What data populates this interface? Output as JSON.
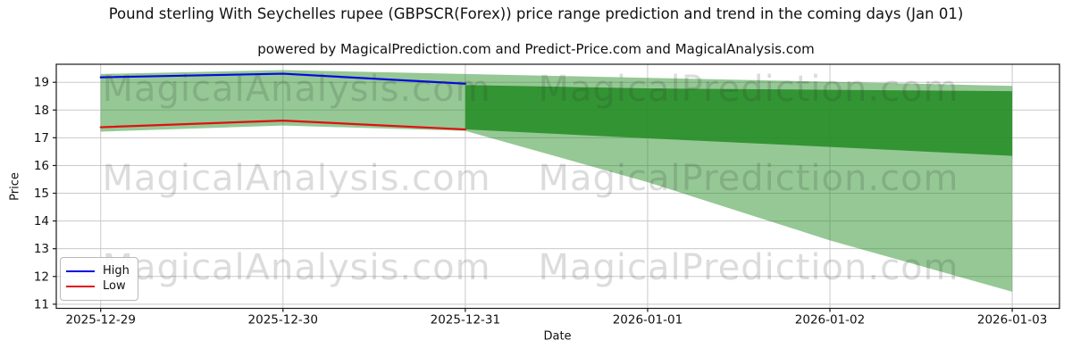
{
  "chart_data": {
    "type": "line",
    "title": "Pound sterling With Seychelles rupee (GBPSCR(Forex)) price range prediction and trend in the coming days (Jan 01)",
    "subtitle": "powered by MagicalPrediction.com and Predict-Price.com and MagicalAnalysis.com",
    "xlabel": "Date",
    "ylabel": "Price",
    "categories": [
      "2025-12-29",
      "2025-12-30",
      "2025-12-31",
      "2026-01-01",
      "2026-01-02",
      "2026-01-03"
    ],
    "y_ticks": [
      11,
      12,
      13,
      14,
      15,
      16,
      17,
      18,
      19
    ],
    "ylim": [
      10.85,
      19.65
    ],
    "grid": true,
    "legend_position": "lower left",
    "series": [
      {
        "name": "High",
        "color": "#0808e0",
        "x_idx": [
          0,
          1,
          2
        ],
        "values": [
          19.18,
          19.31,
          18.95
        ]
      },
      {
        "name": "Low",
        "color": "#e01010",
        "x_idx": [
          0,
          1,
          2
        ],
        "values": [
          17.38,
          17.62,
          17.3
        ]
      }
    ],
    "bands": [
      {
        "name": "range-band-light",
        "color": "rgba(34,139,34,0.48)",
        "x_idx": [
          0,
          1,
          2,
          3,
          4,
          5
        ],
        "upper": [
          19.3,
          19.44,
          19.3,
          19.16,
          19.02,
          18.87
        ],
        "lower": [
          17.22,
          17.44,
          17.25,
          15.4,
          13.3,
          11.45
        ]
      },
      {
        "name": "prediction-band-dark",
        "color": "rgba(34,139,34,0.85)",
        "x_idx": [
          2,
          3,
          4,
          5
        ],
        "upper": [
          18.9,
          18.78,
          18.73,
          18.68
        ],
        "lower": [
          17.3,
          16.98,
          16.67,
          16.35
        ]
      }
    ],
    "legend": [
      {
        "label": "High",
        "color": "#0808e0"
      },
      {
        "label": "Low",
        "color": "#e01010"
      }
    ],
    "watermarks": [
      "MagicalAnalysis.com",
      "MagicalPrediction.com"
    ]
  }
}
